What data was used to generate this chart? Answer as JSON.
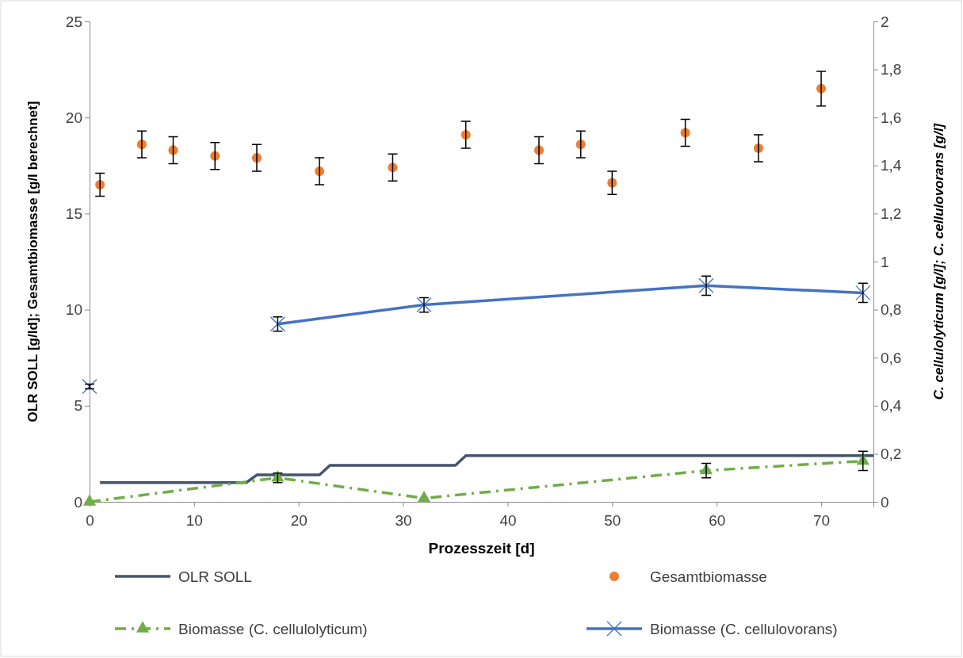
{
  "chart_data": {
    "type": "line",
    "xlabel": "Prozesszeit [d]",
    "ylabel": "OLR SOLL [g/ld]; Gesamtbiomasse [g/l berechnet]",
    "y2label": "C. cellulolyticum [g/l]; C. cellulovorans [g/l]",
    "xlim": [
      0,
      75
    ],
    "xticks": [
      0,
      10,
      20,
      30,
      40,
      50,
      60,
      70
    ],
    "ylim": [
      0,
      25
    ],
    "yticks": [
      0,
      5,
      10,
      15,
      20,
      25
    ],
    "y2lim": [
      0,
      2
    ],
    "y2ticks": [
      0,
      {
        "value": 0.2,
        "label": "0,2"
      },
      {
        "value": 0.4,
        "label": "0,4"
      },
      {
        "value": 0.6,
        "label": "0,6"
      },
      {
        "value": 0.8,
        "label": "0,8"
      },
      1,
      {
        "value": 1.2,
        "label": "1,2"
      },
      {
        "value": 1.4,
        "label": "1,4"
      },
      {
        "value": 1.6,
        "label": "1,6"
      },
      {
        "value": 1.8,
        "label": "1,8"
      },
      2
    ],
    "grid": false,
    "legend": "bottom",
    "series": [
      {
        "name": "OLR SOLL",
        "color": "#44546a",
        "marker": "none",
        "line_style": "solid",
        "x": [
          1,
          15,
          16,
          22,
          23,
          35,
          36,
          75
        ],
        "values": [
          1.0,
          1.0,
          1.4,
          1.4,
          1.9,
          1.9,
          2.4,
          2.4
        ]
      },
      {
        "name": "Gesamtbiomasse",
        "type": "scatter",
        "color": "#ed7d31",
        "marker": "circle",
        "x": [
          1,
          5,
          8,
          12,
          16,
          22,
          29,
          36,
          43,
          47,
          50,
          57,
          64,
          70
        ],
        "values": [
          16.5,
          18.6,
          18.3,
          18.0,
          17.9,
          17.2,
          17.4,
          19.1,
          18.3,
          18.6,
          16.6,
          19.2,
          18.4,
          21.5
        ],
        "errors": [
          0.6,
          0.7,
          0.7,
          0.7,
          0.7,
          0.7,
          0.7,
          0.7,
          0.7,
          0.7,
          0.6,
          0.7,
          0.7,
          0.9
        ]
      },
      {
        "name": "Biomasse (C. cellulolyticum)",
        "axis": "y2",
        "color": "#70ad47",
        "marker": "triangle",
        "line_style": "dashed",
        "x": [
          0,
          18,
          32,
          59,
          74
        ],
        "values": [
          0,
          0.1,
          0.015,
          0.13,
          0.17
        ],
        "errors": [
          null,
          0.02,
          null,
          0.03,
          0.04
        ]
      },
      {
        "name": "Biomasse (C. cellulovorans)",
        "axis": "y2",
        "color": "#4472c4",
        "marker": "cross",
        "line_style": "solid",
        "x": [
          0,
          1,
          18,
          32,
          59,
          74
        ],
        "values": [
          0.48,
          null,
          0.74,
          0.82,
          0.9,
          0.87
        ],
        "errors": [
          0.01,
          null,
          0.03,
          0.03,
          0.04,
          0.04
        ]
      }
    ]
  }
}
